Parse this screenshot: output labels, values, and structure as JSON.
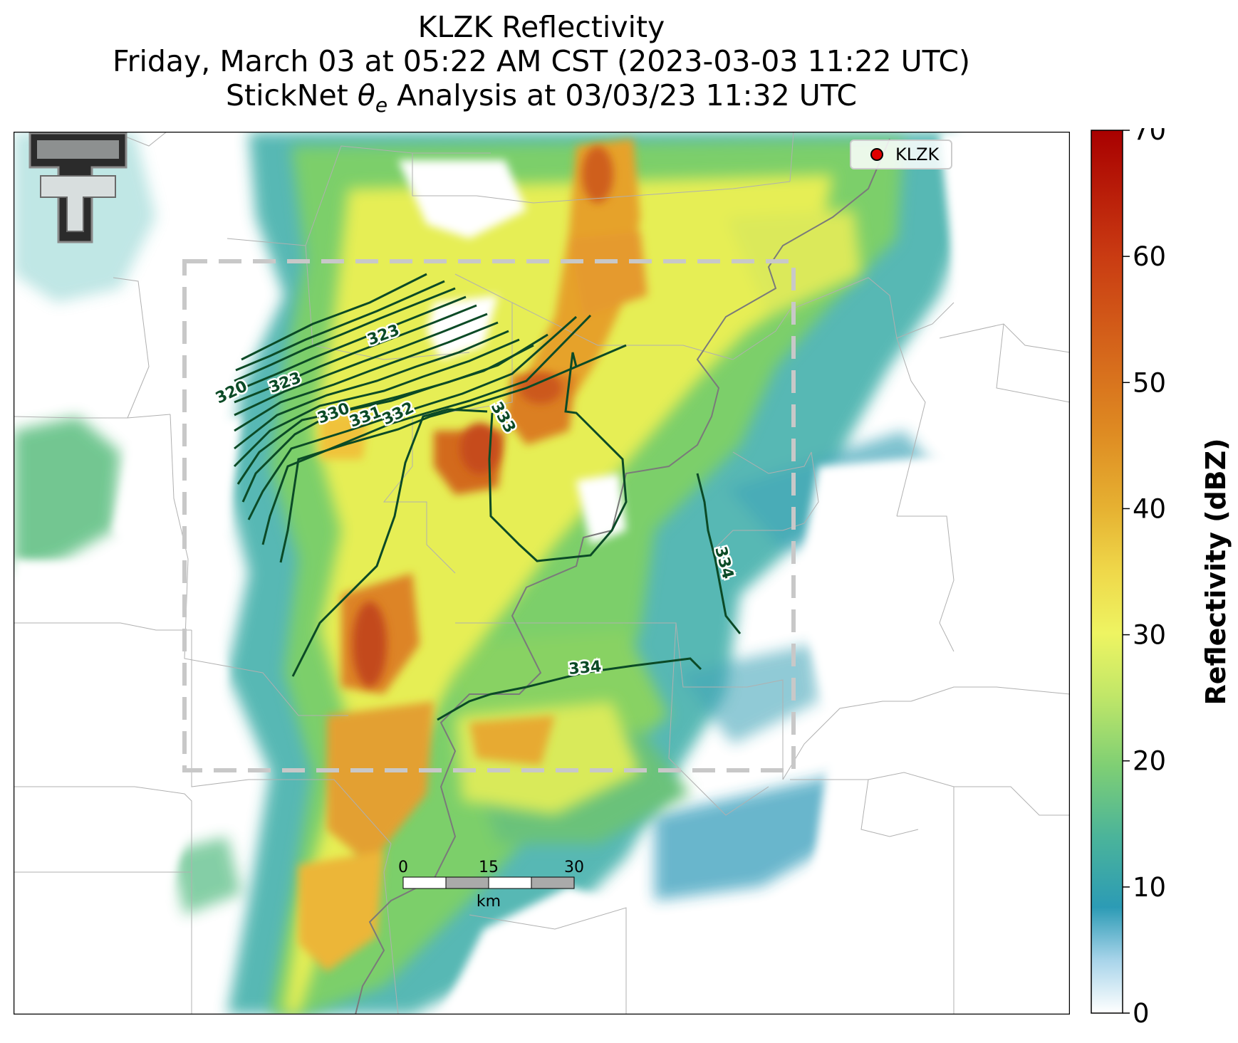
{
  "title": {
    "line1": "KLZK Reflectivity",
    "line2": "Friday, March 03 at 05:22 AM CST (2023-03-03 11:22 UTC)",
    "line3_pre": "StickNet ",
    "line3_theta": "θ",
    "line3_sub": "e",
    "line3_post": " Analysis at 03/03/23 11:32 UTC"
  },
  "legend": {
    "marker_label": "KLZK",
    "marker_color": "#e00000"
  },
  "colorbar": {
    "label": "Reflectivity (dBZ)",
    "ticks": [
      "0",
      "10",
      "20",
      "30",
      "40",
      "50",
      "60",
      "70"
    ],
    "range": [
      0,
      70
    ]
  },
  "contour_labels": [
    "320",
    "323",
    "323",
    "330",
    "331",
    "332",
    "333",
    "334",
    "334"
  ],
  "scalebar": {
    "ticks": [
      "0",
      "15",
      "30"
    ],
    "unit": "km"
  },
  "colors": {
    "contour": "#0b4a26",
    "domain_box": "#c8c8c8",
    "state_border": "#7a7a7a",
    "county_border": "#b0b0b0"
  },
  "logo": {
    "name": "texas-tech-double-t-logo"
  }
}
